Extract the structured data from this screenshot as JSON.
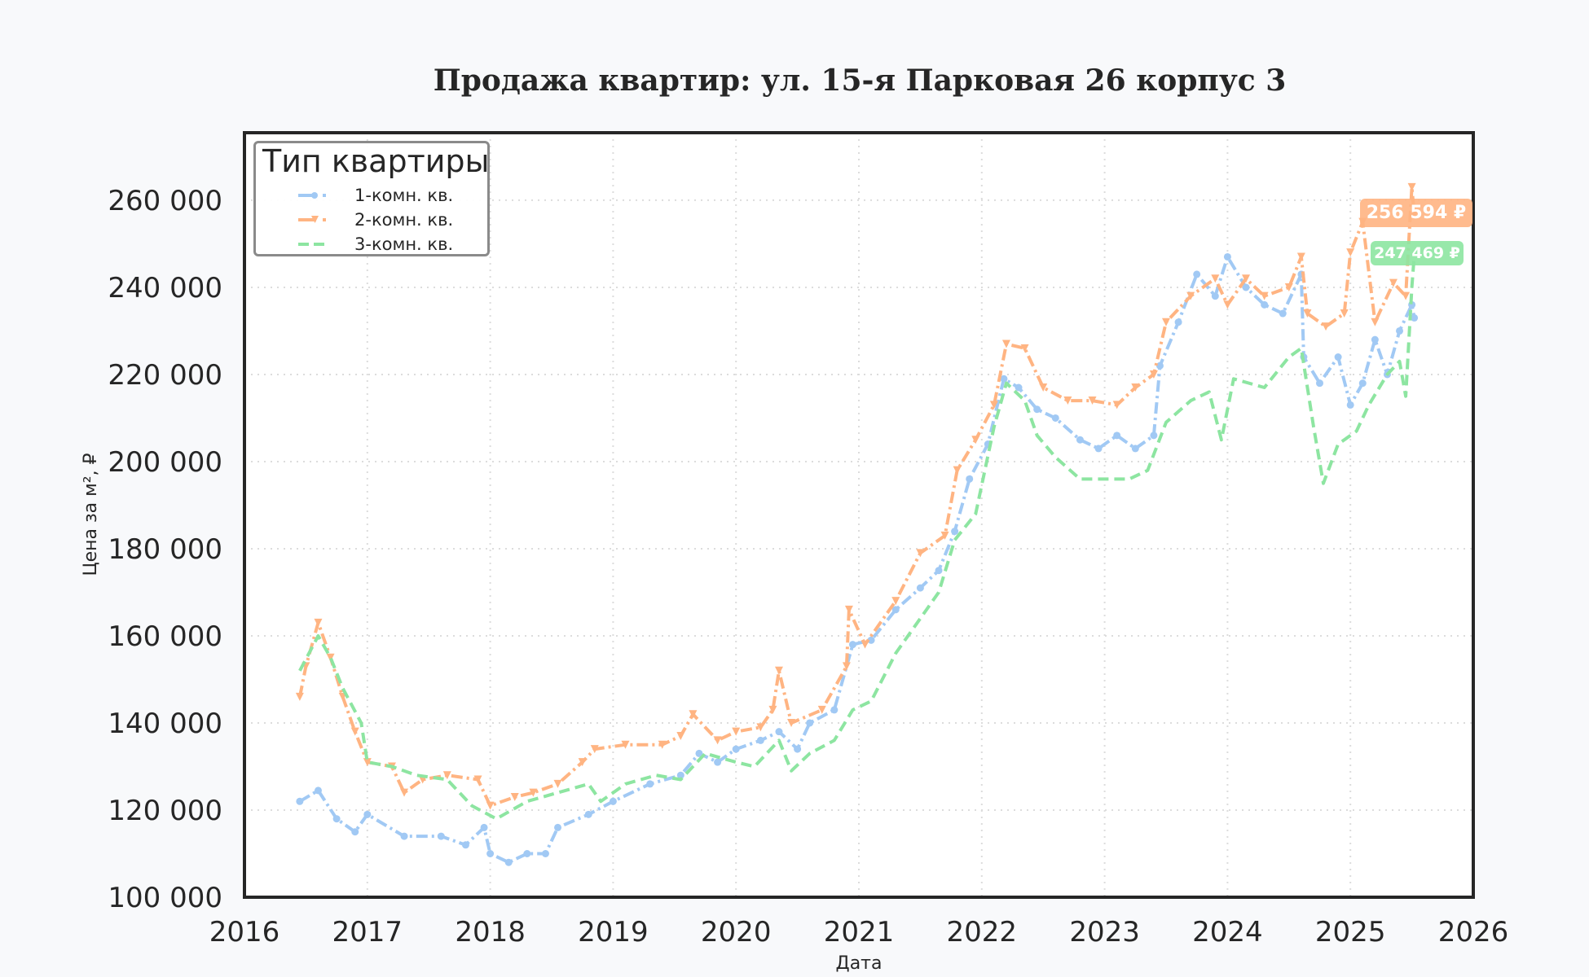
{
  "title": "Продажа квартир: ул. 15-я Парковая 26 корпус 3",
  "axes": {
    "xlabel": "Дата",
    "ylabel": "Цена за м², ₽",
    "xticks": [
      "2016",
      "2017",
      "2018",
      "2019",
      "2020",
      "2021",
      "2022",
      "2023",
      "2024",
      "2025",
      "2026"
    ],
    "yticks": [
      "100 000",
      "120 000",
      "140 000",
      "160 000",
      "180 000",
      "200 000",
      "220 000",
      "240 000",
      "260 000"
    ]
  },
  "legend": {
    "title": "Тип квартиры",
    "items": [
      {
        "label": "1-комн. кв.",
        "color": "#a1c9f4",
        "style": "dash-dot",
        "marker": "circle"
      },
      {
        "label": "2-комн. кв.",
        "color": "#ffb482",
        "style": "dash-dot",
        "marker": "triangle-down"
      },
      {
        "label": "3-комн. кв.",
        "color": "#8de5a1",
        "style": "dashed",
        "marker": "none"
      }
    ]
  },
  "annotations": {
    "two_room_last": {
      "text": "256 594 ₽",
      "color": "#ffb482"
    },
    "three_room_last": {
      "text": "247 469 ₽",
      "color": "#8de5a1"
    }
  },
  "chart_data": {
    "type": "line",
    "title": "Продажа квартир: ул. 15-я Парковая 26 корпус 3",
    "xlabel": "Дата",
    "ylabel": "Цена за м², ₽",
    "xlim": [
      2016,
      2026
    ],
    "ylim": [
      100000,
      275500
    ],
    "grid": true,
    "legend_position": "upper left",
    "legend_title": "Тип квартиры",
    "series": [
      {
        "name": "1-комн. кв.",
        "color": "#a1c9f4",
        "x": [
          2016.45,
          2016.6,
          2016.75,
          2016.9,
          2017.0,
          2017.3,
          2017.6,
          2017.8,
          2017.95,
          2018.0,
          2018.15,
          2018.3,
          2018.45,
          2018.55,
          2018.8,
          2019.0,
          2019.3,
          2019.55,
          2019.7,
          2019.85,
          2020.0,
          2020.2,
          2020.35,
          2020.5,
          2020.6,
          2020.8,
          2020.95,
          2021.1,
          2021.3,
          2021.5,
          2021.65,
          2021.78,
          2021.9,
          2022.05,
          2022.18,
          2022.3,
          2022.45,
          2022.6,
          2022.8,
          2022.95,
          2023.1,
          2023.25,
          2023.4,
          2023.45,
          2023.6,
          2023.75,
          2023.9,
          2024.0,
          2024.15,
          2024.3,
          2024.45,
          2024.6,
          2024.62,
          2024.75,
          2024.9,
          2025.0,
          2025.1,
          2025.2,
          2025.3,
          2025.4,
          2025.5,
          2025.52
        ],
        "values": [
          122000,
          124500,
          118000,
          115000,
          119000,
          114000,
          114000,
          112000,
          116000,
          110000,
          108000,
          110000,
          110000,
          116000,
          119000,
          122000,
          126000,
          128000,
          133000,
          131000,
          134000,
          136000,
          138000,
          134000,
          140000,
          143000,
          158000,
          159000,
          166000,
          171000,
          175000,
          184000,
          196000,
          204000,
          219000,
          217000,
          212000,
          210000,
          205000,
          203000,
          206000,
          203000,
          206000,
          222000,
          232000,
          243000,
          238000,
          247000,
          240000,
          236000,
          234000,
          243000,
          224000,
          218000,
          224000,
          213000,
          218000,
          228000,
          220000,
          230000,
          236000,
          233000
        ]
      },
      {
        "name": "2-комн. кв.",
        "color": "#ffb482",
        "x": [
          2016.45,
          2016.5,
          2016.6,
          2016.7,
          2016.8,
          2016.9,
          2017.0,
          2017.2,
          2017.3,
          2017.45,
          2017.65,
          2017.9,
          2018.0,
          2018.2,
          2018.35,
          2018.55,
          2018.75,
          2018.85,
          2019.1,
          2019.4,
          2019.55,
          2019.65,
          2019.85,
          2020.0,
          2020.2,
          2020.3,
          2020.35,
          2020.45,
          2020.7,
          2020.9,
          2020.92,
          2021.05,
          2021.3,
          2021.5,
          2021.7,
          2021.8,
          2021.95,
          2022.1,
          2022.2,
          2022.35,
          2022.5,
          2022.7,
          2022.9,
          2023.1,
          2023.25,
          2023.4,
          2023.5,
          2023.7,
          2023.9,
          2024.0,
          2024.15,
          2024.3,
          2024.5,
          2024.6,
          2024.65,
          2024.8,
          2024.95,
          2025.0,
          2025.1,
          2025.2,
          2025.35,
          2025.45,
          2025.5,
          2025.52
        ],
        "values": [
          146000,
          153000,
          163000,
          155000,
          146000,
          138000,
          131000,
          130000,
          124000,
          127000,
          128000,
          127000,
          121000,
          123000,
          124000,
          126000,
          131000,
          134000,
          135000,
          135000,
          137000,
          142000,
          136000,
          138000,
          139000,
          143000,
          152000,
          140000,
          143000,
          153000,
          166000,
          158000,
          168000,
          179000,
          183000,
          198000,
          205000,
          213000,
          227000,
          226000,
          217000,
          214000,
          214000,
          213000,
          217000,
          220000,
          232000,
          238000,
          242000,
          236000,
          242000,
          238000,
          240000,
          247000,
          234000,
          231000,
          234000,
          248000,
          255000,
          232000,
          241000,
          238000,
          263000,
          256594
        ]
      },
      {
        "name": "3-комн. кв.",
        "color": "#8de5a1",
        "x": [
          2016.45,
          2016.6,
          2016.7,
          2016.8,
          2016.95,
          2017.0,
          2017.2,
          2017.4,
          2017.65,
          2017.85,
          2018.05,
          2018.3,
          2018.55,
          2018.8,
          2018.9,
          2019.1,
          2019.35,
          2019.55,
          2019.75,
          2020.0,
          2020.15,
          2020.35,
          2020.45,
          2020.6,
          2020.8,
          2020.95,
          2021.1,
          2021.3,
          2021.5,
          2021.65,
          2021.78,
          2021.95,
          2022.1,
          2022.2,
          2022.35,
          2022.45,
          2022.6,
          2022.8,
          2023.0,
          2023.2,
          2023.35,
          2023.5,
          2023.7,
          2023.85,
          2023.95,
          2024.05,
          2024.3,
          2024.5,
          2024.6,
          2024.7,
          2024.78,
          2024.9,
          2025.05,
          2025.15,
          2025.3,
          2025.4,
          2025.45,
          2025.5,
          2025.52
        ],
        "values": [
          152000,
          160000,
          155000,
          148000,
          140000,
          131000,
          130000,
          128000,
          127000,
          121000,
          118000,
          122000,
          124000,
          126000,
          122000,
          126000,
          128000,
          127000,
          133000,
          131000,
          130000,
          136000,
          129000,
          133000,
          136000,
          143000,
          145000,
          156000,
          164000,
          170000,
          182000,
          188000,
          208000,
          218000,
          214000,
          206000,
          201000,
          196000,
          196000,
          196000,
          198000,
          209000,
          214000,
          216000,
          205000,
          219000,
          217000,
          224000,
          226000,
          208000,
          195000,
          204000,
          207000,
          213000,
          220000,
          223000,
          215000,
          240000,
          247469
        ]
      }
    ],
    "annotations": [
      {
        "series": "2-комн. кв.",
        "text": "256 594 ₽",
        "value": 256594
      },
      {
        "series": "3-комн. кв.",
        "text": "247 469 ₽",
        "value": 247469
      }
    ]
  }
}
